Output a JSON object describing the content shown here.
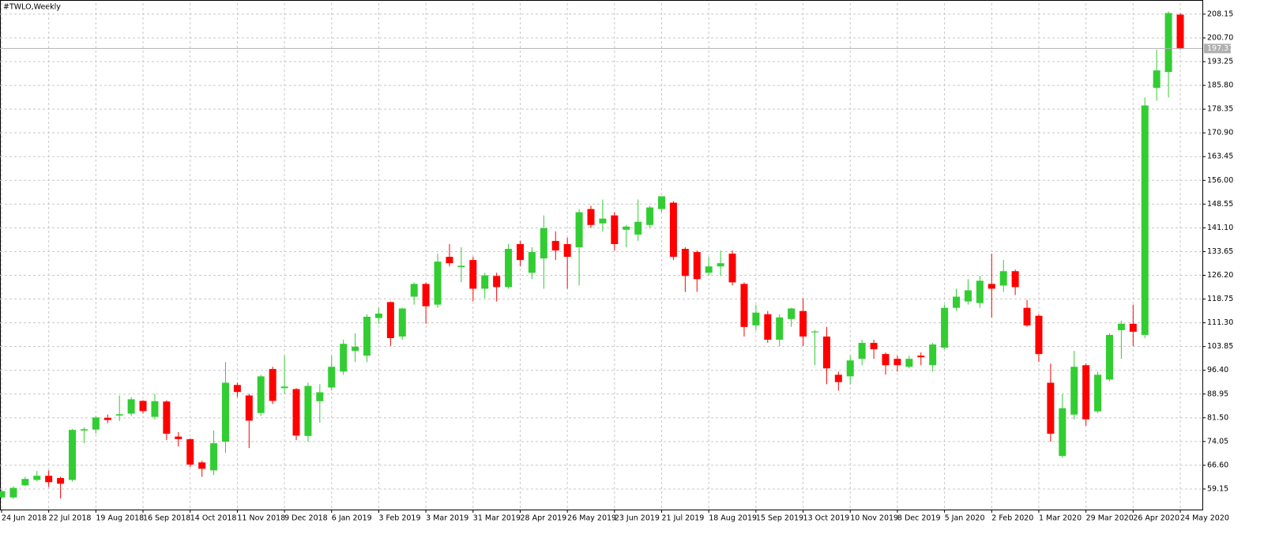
{
  "chart_data": {
    "type": "candlestick",
    "title": "#TWLO,Weekly",
    "categories": [
      "24 Jun 2018",
      null,
      null,
      null,
      "22 Jul 2018",
      null,
      null,
      null,
      "19 Aug 2018",
      null,
      null,
      null,
      "16 Sep 2018",
      null,
      null,
      null,
      "14 Oct 2018",
      null,
      null,
      null,
      "11 Nov 2018",
      null,
      null,
      null,
      "9 Dec 2018",
      null,
      null,
      null,
      "6 Jan 2019",
      null,
      null,
      null,
      "3 Feb 2019",
      null,
      null,
      null,
      "3 Mar 2019",
      null,
      null,
      null,
      "31 Mar 2019",
      null,
      null,
      null,
      "28 Apr 2019",
      null,
      null,
      null,
      "26 May 2019",
      null,
      null,
      null,
      "23 Jun 2019",
      null,
      null,
      null,
      "21 Jul 2019",
      null,
      null,
      null,
      "18 Aug 2019",
      null,
      null,
      null,
      "15 Sep 2019",
      null,
      null,
      null,
      "13 Oct 2019",
      null,
      null,
      null,
      "10 Nov 2019",
      null,
      null,
      null,
      "8 Dec 2019",
      null,
      null,
      null,
      "5 Jan 2020",
      null,
      null,
      null,
      "2 Feb 2020",
      null,
      null,
      null,
      "1 Mar 2020",
      null,
      null,
      null,
      "29 Mar 2020",
      null,
      null,
      null,
      "26 Apr 2020",
      null,
      null,
      null,
      "24 May 2020"
    ],
    "open": [
      56.5,
      56.5,
      60.3,
      62,
      63.3,
      62.6,
      62,
      77.5,
      77.8,
      81.5,
      82.2,
      82.8,
      86.8,
      81.8,
      86.6,
      75.6,
      74.8,
      67.5,
      65,
      74,
      91.8,
      88.5,
      83,
      96.8,
      90.8,
      90.5,
      75.8,
      86.7,
      91,
      96,
      102.5,
      101,
      112.8,
      117.8,
      107,
      119.5,
      123.5,
      117,
      132,
      128.8,
      131,
      122,
      126,
      122.5,
      136,
      127,
      131.5,
      137,
      136,
      135,
      147,
      142.5,
      145,
      140.5,
      139,
      142,
      147,
      149,
      134.5,
      133.5,
      127,
      129,
      133,
      123.5,
      110.5,
      114,
      106,
      112.5,
      115,
      108.3,
      107,
      95,
      94.5,
      100,
      105,
      101.5,
      100,
      97.5,
      101,
      98,
      103.5,
      116,
      118,
      117.5,
      123.5,
      123,
      127.5,
      116,
      113.5,
      92.5,
      69.5,
      82.5,
      98,
      83.5,
      93.5,
      109,
      111,
      107.5,
      185,
      190,
      208
    ],
    "high": [
      59,
      60,
      63,
      64.8,
      65,
      63,
      78,
      78.5,
      82,
      82.5,
      88.5,
      88,
      87,
      89,
      87,
      77,
      75,
      68,
      77.5,
      99,
      92.5,
      89,
      95,
      97.5,
      101,
      90.8,
      92.5,
      92,
      101,
      106,
      108,
      114,
      116,
      118,
      116,
      124,
      124,
      133,
      136,
      135,
      132,
      127,
      127,
      136,
      137,
      135,
      145,
      140,
      138,
      147,
      148,
      150,
      146,
      142,
      150,
      148,
      151,
      149.5,
      135,
      134,
      132,
      134,
      134,
      124,
      117,
      115,
      114,
      116,
      119,
      109,
      110,
      96,
      101,
      106,
      106,
      102,
      101,
      101,
      102,
      105,
      117,
      122,
      125,
      126,
      133,
      131,
      128,
      118.5,
      114,
      98.5,
      89,
      102.5,
      98.5,
      96,
      108,
      112,
      117,
      182,
      197,
      209,
      208.5
    ],
    "low": [
      56,
      56,
      60,
      61.5,
      59.8,
      56.2,
      61.5,
      73.5,
      76.5,
      79.8,
      80.5,
      82,
      82.8,
      81,
      74.5,
      72.5,
      66,
      63,
      63.5,
      70.5,
      88,
      72,
      82,
      85.8,
      89,
      74.5,
      74,
      80,
      90,
      95,
      99,
      99,
      111,
      104,
      106,
      117,
      111,
      116,
      129,
      124,
      118,
      119,
      118,
      122,
      129,
      125,
      122,
      131,
      122,
      123,
      141,
      140,
      134,
      135,
      137,
      141,
      146,
      131,
      121,
      121,
      126,
      126,
      123,
      107,
      109,
      105,
      104,
      110,
      104,
      98,
      92,
      90,
      92,
      98,
      100,
      95,
      96,
      97,
      98,
      96,
      103,
      115,
      117,
      116,
      113,
      121,
      120,
      110,
      99,
      74,
      69,
      81,
      79,
      83,
      93,
      100,
      104,
      106.5,
      181,
      182,
      197
    ],
    "close": [
      58.5,
      59.5,
      62.3,
      63.3,
      61.3,
      60.8,
      77.7,
      77.9,
      81.6,
      80.8,
      82.6,
      87.3,
      83.6,
      86.7,
      76.5,
      74.8,
      66.8,
      65.5,
      73.5,
      92.5,
      89.6,
      80.6,
      94.5,
      86.8,
      91.3,
      75.9,
      91.5,
      89.5,
      97.5,
      104.7,
      103.8,
      113.2,
      114.2,
      106.5,
      115.8,
      123.5,
      116.5,
      130.5,
      130,
      129.2,
      122,
      126.2,
      122.5,
      134.5,
      131,
      133.5,
      141,
      134,
      132,
      146,
      142,
      144,
      136,
      141.5,
      143,
      147.5,
      151,
      132,
      126,
      125,
      129,
      130,
      124,
      110,
      114.5,
      106,
      113,
      115.8,
      107,
      108.6,
      97,
      92.7,
      99.5,
      105,
      103,
      98,
      98,
      100,
      100.5,
      104.5,
      116,
      119.5,
      121.5,
      124.5,
      122,
      127.5,
      122.5,
      110.5,
      101.5,
      76.5,
      84.5,
      97.5,
      81,
      95,
      107.5,
      111,
      108.5,
      179.5,
      190.5,
      208.5,
      197.37
    ],
    "up_color": "#32cd32",
    "down_color": "#ff0000",
    "current_price": 197.37,
    "ylim": [
      52.7,
      211.6
    ],
    "yticks": [
      59.15,
      {
        "value": 66.6,
        "label": "66.60"
      },
      74.05,
      {
        "value": 81.5,
        "label": "81.50"
      },
      88.95,
      {
        "value": 96.4,
        "label": "96.40"
      },
      103.85,
      {
        "value": 111.3,
        "label": "111.30"
      },
      118.75,
      {
        "value": 126.2,
        "label": "126.20"
      },
      133.65,
      {
        "value": 141.1,
        "label": "141.10"
      },
      148.55,
      {
        "value": 156,
        "label": "156.00"
      },
      163.45,
      {
        "value": 170.9,
        "label": "170.90"
      },
      178.35,
      {
        "value": 185.8,
        "label": "185.80"
      },
      193.25,
      {
        "value": 200.7,
        "label": "200.70"
      },
      208.15
    ],
    "grid": true
  }
}
